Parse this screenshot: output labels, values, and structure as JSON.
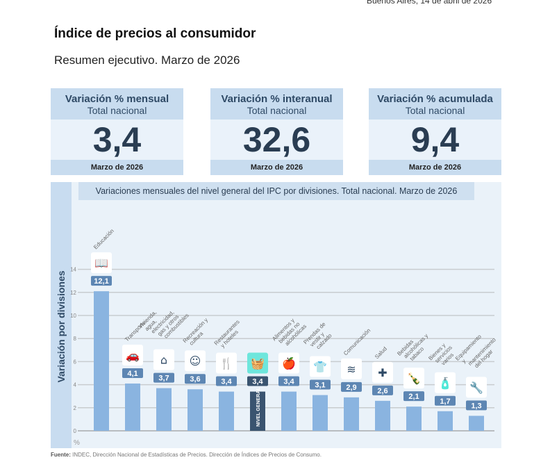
{
  "header": {
    "date": "Buenos Aires, 14 de abril de 2026",
    "title": "Índice de precios al consumidor",
    "subtitle": "Resumen ejecutivo. Marzo de 2026"
  },
  "cards": [
    {
      "title": "Variación % mensual",
      "sub": "Total nacional",
      "value": "3,4",
      "period": "Marzo de 2026"
    },
    {
      "title": "Variación % interanual",
      "sub": "Total nacional",
      "value": "32,6",
      "period": "Marzo de 2026"
    },
    {
      "title": "Variación % acumulada",
      "sub": "Total nacional",
      "value": "9,4",
      "period": "Marzo de 2026"
    }
  ],
  "source": {
    "label": "Fuente:",
    "text": "INDEC, Dirección Nacional de Estadísticas de Precios. Dirección de Índices de Precios de Consumo."
  },
  "chart_data": {
    "type": "bar",
    "title": "Variaciones mensuales del nivel general del IPC por divisiones. Total nacional. Marzo de 2026",
    "ylabel": "Variación por divisiones",
    "yunit": "%",
    "ylim": [
      0,
      14
    ],
    "yticks": [
      0,
      2,
      4,
      6,
      8,
      10,
      12,
      14
    ],
    "grid": true,
    "categories": [
      "Educación",
      "Transporte",
      "Vivienda, agua, electricidad, gas y otros combustibles",
      "Recreación y cultura",
      "Restaurantes y hoteles",
      "NIVEL GENERAL",
      "Alimentos y bebidas no alcohólicas",
      "Prendas de vestir y calzado",
      "Comunicación",
      "Salud",
      "Bebidas alcohólicas y tabaco",
      "Bienes y servicios varios",
      "Equipamiento y mantenimiento del hogar"
    ],
    "values": [
      12.1,
      4.1,
      3.7,
      3.6,
      3.4,
      3.4,
      3.4,
      3.1,
      2.9,
      2.6,
      2.1,
      1.7,
      1.3
    ],
    "labels": [
      "12,1",
      "4,1",
      "3,7",
      "3,6",
      "3,4",
      "3,4",
      "3,4",
      "3,1",
      "2,9",
      "2,6",
      "2,1",
      "1,7",
      "1,3"
    ],
    "icons": [
      "book-icon",
      "car-icon",
      "house-icon",
      "theater-icon",
      "restaurant-icon",
      "basket-icon",
      "food-icon",
      "shirt-icon",
      "wifi-icon",
      "health-icon",
      "bottle-icon",
      "soap-icon",
      "tools-icon"
    ],
    "highlight": 5,
    "colors": {
      "bar": "#8ab4e0",
      "highlight": "#3a5470",
      "label": "#5d86b3",
      "highlight_icon": "#6ee6dc"
    }
  }
}
